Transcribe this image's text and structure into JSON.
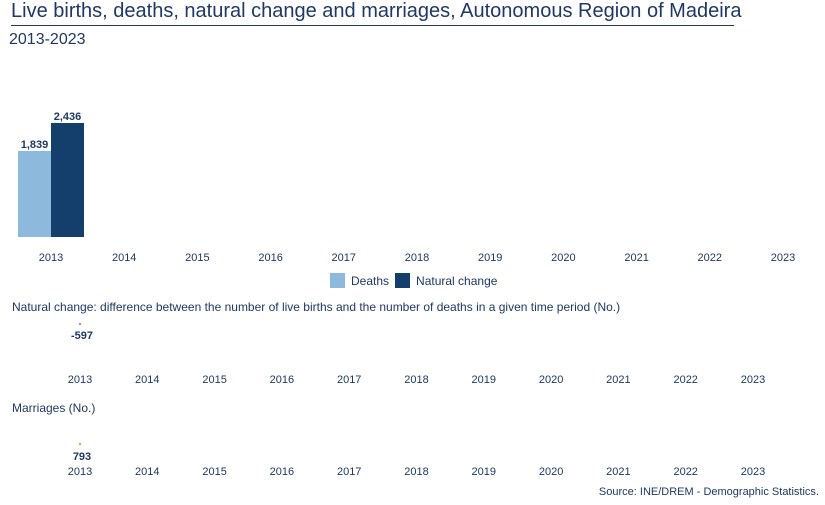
{
  "header": {
    "title": "Live births, deaths, natural change and marriages, Autonomous Region of Madeira",
    "subtitle": "2013-2023"
  },
  "colors": {
    "deaths": "#8dbadc",
    "natural_change": "#143e6b",
    "marriages": "#f5a623",
    "text": "#1f3864"
  },
  "legend": {
    "deaths": "Deaths",
    "natural_change": "Natural change"
  },
  "natural_section_title": "Natural change: difference between the number of live births and the number of deaths in a given time period (No.)",
  "marriages_section_title": "Marriages (No.)",
  "source": "Source: INE/DREM - Demographic Statistics.",
  "chart_data": [
    {
      "type": "bar",
      "categories": [
        "2013",
        "2014",
        "2015",
        "2016",
        "2017",
        "2018",
        "2019",
        "2020",
        "2021",
        "2022",
        "2023"
      ],
      "series": [
        {
          "name": "Deaths",
          "values": [
            1839,
            null,
            null,
            null,
            null,
            null,
            null,
            null,
            null,
            null,
            null
          ],
          "labels": [
            "1,839"
          ]
        },
        {
          "name": "Natural change",
          "values": [
            2436,
            null,
            null,
            null,
            null,
            null,
            null,
            null,
            null,
            null,
            null
          ],
          "labels": [
            "2,436"
          ]
        }
      ],
      "ylim": [
        0,
        2500
      ]
    },
    {
      "type": "line",
      "categories": [
        "2013",
        "2014",
        "2015",
        "2016",
        "2017",
        "2018",
        "2019",
        "2020",
        "2021",
        "2022",
        "2023"
      ],
      "values": [
        -597,
        null,
        null,
        null,
        null,
        null,
        null,
        null,
        null,
        null,
        null
      ],
      "labels": [
        "-597"
      ]
    },
    {
      "type": "line",
      "categories": [
        "2013",
        "2014",
        "2015",
        "2016",
        "2017",
        "2018",
        "2019",
        "2020",
        "2021",
        "2022",
        "2023"
      ],
      "values": [
        793,
        null,
        null,
        null,
        null,
        null,
        null,
        null,
        null,
        null,
        null
      ],
      "labels": [
        "793"
      ]
    }
  ]
}
